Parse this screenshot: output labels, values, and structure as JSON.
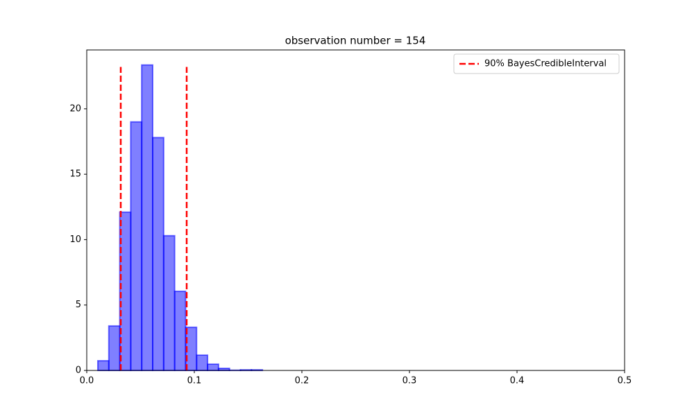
{
  "chart_data": {
    "type": "histogram",
    "title": "observation number = 154",
    "bins": [
      0.0103,
      0.0205,
      0.0307,
      0.0409,
      0.0511,
      0.0613,
      0.0715,
      0.0817,
      0.0919,
      0.1021,
      0.1123,
      0.1225,
      0.1327,
      0.1429,
      0.1531,
      0.1633
    ],
    "counts": [
      0.74,
      3.4,
      12.1,
      19.0,
      23.35,
      17.8,
      10.3,
      6.05,
      3.3,
      1.17,
      0.48,
      0.16,
      0.02,
      0.05,
      0.05
    ],
    "color": "#0000ff",
    "credible_interval": {
      "name": "90% BayesCredibleInterval",
      "color": "#ff0000",
      "x": [
        0.0316,
        0.0929
      ],
      "ymax": 23.2
    },
    "xlim": [
      0,
      0.5
    ],
    "ylim": [
      0,
      24.5
    ],
    "xticks": [
      {
        "value": 0,
        "label": "0.0"
      },
      0.1,
      0.2,
      0.3,
      0.4,
      0.5
    ],
    "yticks": [
      0,
      5,
      10,
      15,
      20
    ],
    "legend": "upper right"
  }
}
